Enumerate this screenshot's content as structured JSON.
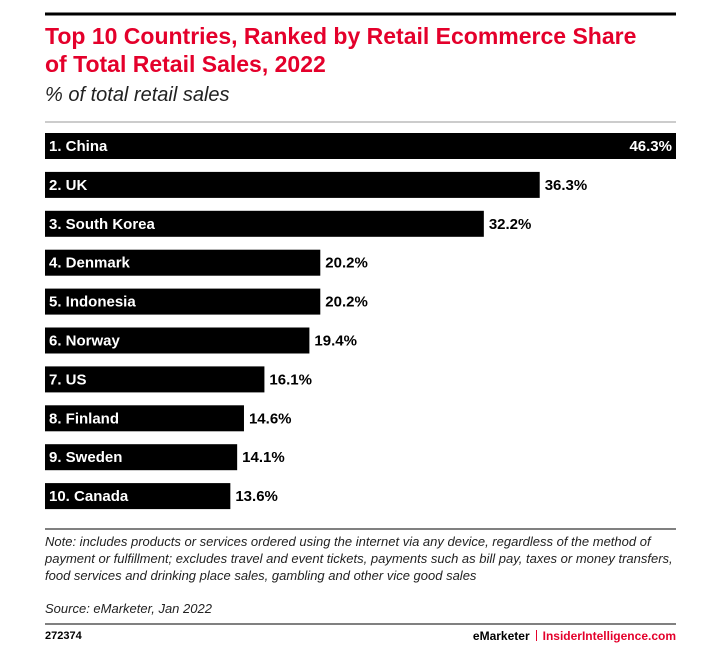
{
  "chart_data": {
    "type": "bar",
    "orientation": "horizontal",
    "title": "Top 10 Countries, Ranked by Retail Ecommerce Share of Total Retail Sales, 2022",
    "subtitle": "% of total retail sales",
    "categories": [
      "1. China",
      "2. UK",
      "3. South Korea",
      "4. Denmark",
      "5. Indonesia",
      "6. Norway",
      "7. US",
      "8. Finland",
      "9. Sweden",
      "10. Canada"
    ],
    "values": [
      46.3,
      36.3,
      32.2,
      20.2,
      20.2,
      19.4,
      16.1,
      14.6,
      14.1,
      13.6
    ],
    "value_labels": [
      "46.3%",
      "36.3%",
      "32.2%",
      "20.2%",
      "20.2%",
      "19.4%",
      "16.1%",
      "14.6%",
      "14.1%",
      "13.6%"
    ],
    "color": "#000000",
    "note": "Note: includes products or services ordered using the internet via any device, regardless of the method of payment or fulfillment; excludes travel and event tickets, payments such as bill pay, taxes or money transfers, food services and drinking place sales, gambling and other vice good sales",
    "source": "Source: eMarketer, Jan 2022",
    "chart_id": "272374",
    "brand": "eMarketer",
    "site": "InsiderIntelligence.com"
  }
}
